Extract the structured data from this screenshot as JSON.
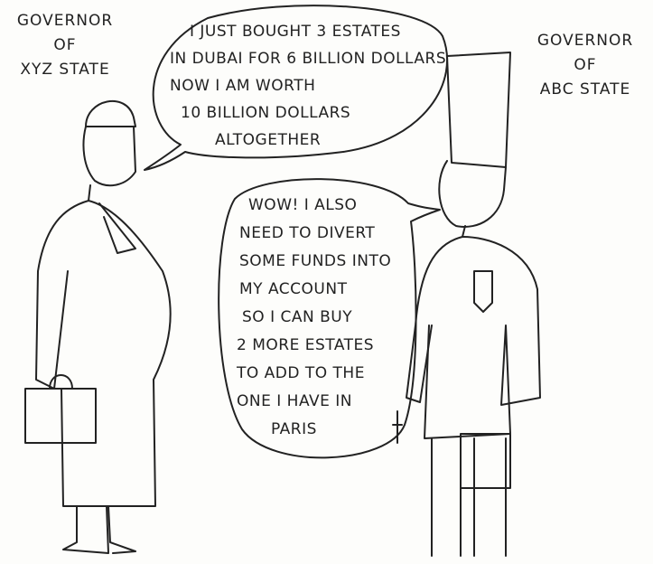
{
  "left_label": {
    "lines": [
      "GOVERNOR",
      "OF",
      "XYZ STATE"
    ]
  },
  "right_label": {
    "lines": [
      "GOVERNOR",
      "OF",
      "ABC STATE"
    ]
  },
  "speech_left": {
    "lines": [
      "I JUST BOUGHT 3 ESTATES",
      "IN DUBAI FOR 6 BILLION DOLLARS",
      "NOW I AM WORTH",
      "10 BILLION DOLLARS",
      "ALTOGETHER"
    ]
  },
  "speech_right": {
    "lines": [
      "WOW! I ALSO",
      "NEED TO DIVERT",
      "SOME FUNDS INTO",
      "MY ACCOUNT",
      "SO I CAN BUY",
      "2 MORE ESTATES",
      "TO ADD TO THE",
      "ONE I HAVE IN",
      "PARIS"
    ]
  }
}
